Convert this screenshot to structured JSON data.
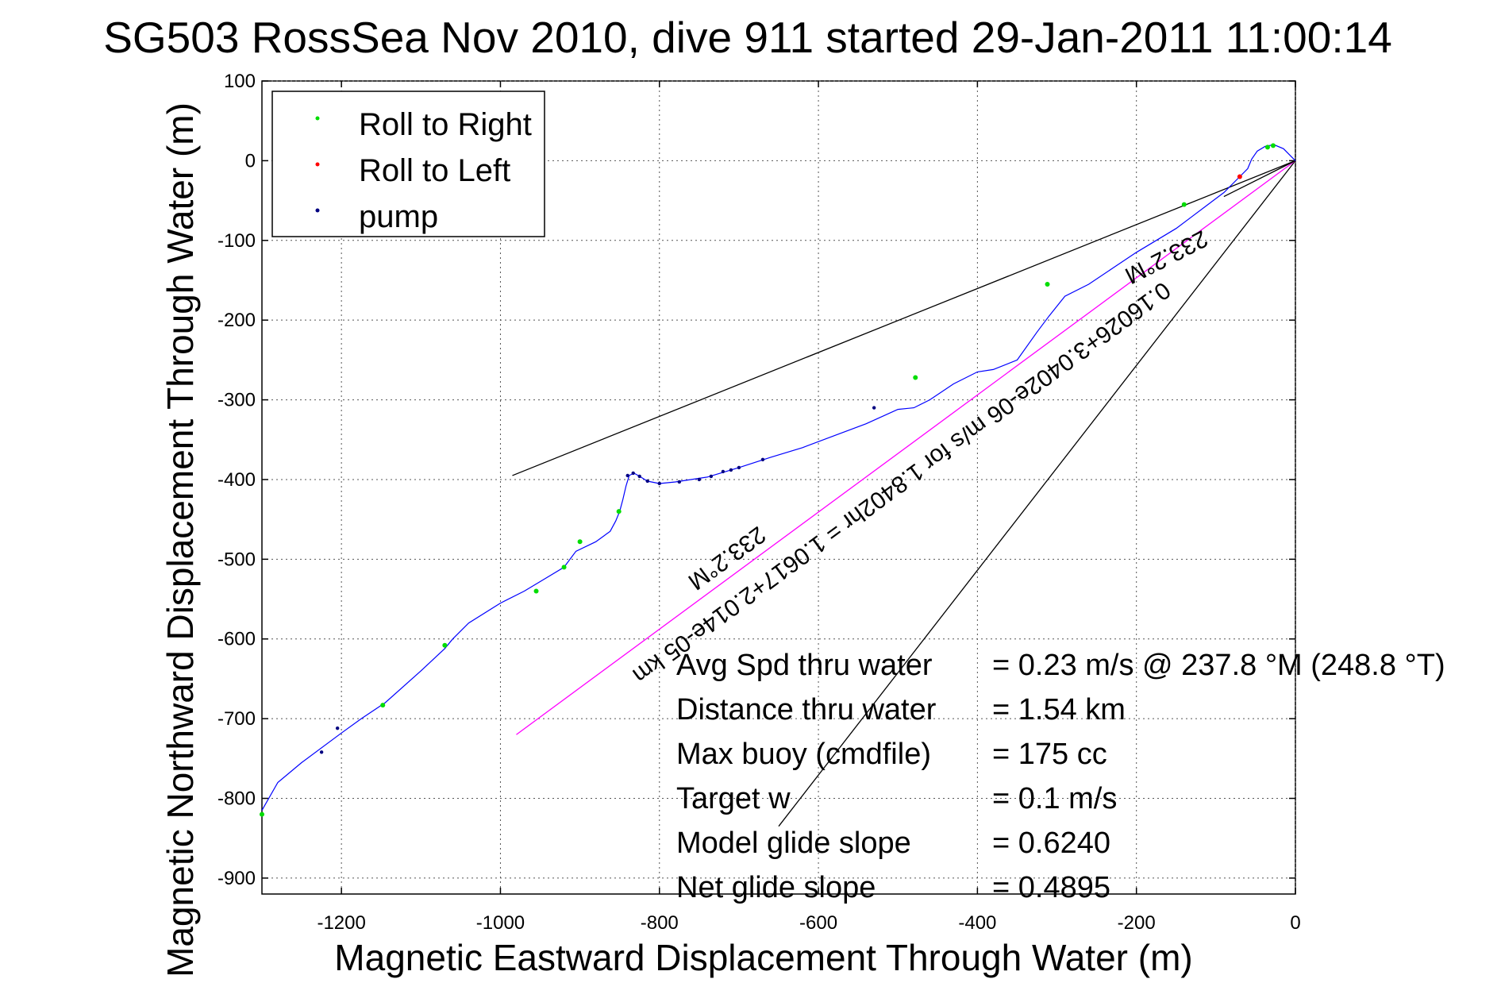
{
  "chart_data": {
    "type": "scatter",
    "title": "SG503 RossSea Nov 2010, dive 911 started 29-Jan-2011 11:00:14",
    "xlabel": "Magnetic Eastward Displacement Through Water (m)",
    "ylabel": "Magnetic Northward Displacement Through Water (m)",
    "xlim": [
      -1300,
      0
    ],
    "ylim": [
      -920,
      100
    ],
    "grid": true,
    "xticks": [
      -1200,
      -1000,
      -800,
      -600,
      -400,
      -200,
      0
    ],
    "xtick_labels": [
      "-1200",
      "-1000",
      "-800",
      "-600",
      "-400",
      "-200",
      "0"
    ],
    "yticks": [
      100,
      0,
      -100,
      -200,
      -300,
      -400,
      -500,
      -600,
      -700,
      -800,
      -900
    ],
    "ytick_labels": [
      "100",
      "0",
      "-100",
      "-200",
      "-300",
      "-400",
      "-500",
      "-600",
      "-700",
      "-800",
      "-900"
    ],
    "legend_position": "top-left",
    "legend": [
      {
        "label": "Roll to Right",
        "color": "#00dd00"
      },
      {
        "label": "Roll to Left",
        "color": "#ff0000"
      },
      {
        "label": "pump",
        "color": "#000080"
      }
    ],
    "track": {
      "color": "#0000ff",
      "x": [
        0,
        -5,
        -15,
        -27,
        -38,
        -48,
        -55,
        -60,
        -75,
        -90,
        -110,
        -130,
        -150,
        -175,
        -200,
        -230,
        -260,
        -290,
        -310,
        -325,
        -350,
        -380,
        -400,
        -430,
        -460,
        -480,
        -500,
        -540,
        -580,
        -620,
        -660,
        -700,
        -740,
        -780,
        -800,
        -815,
        -825,
        -832,
        -838,
        -842,
        -846,
        -850,
        -855,
        -862,
        -880,
        -905,
        -920,
        -945,
        -970,
        -1000,
        -1040,
        -1060,
        -1070,
        -1100,
        -1145,
        -1175,
        -1200,
        -1250,
        -1280,
        -1300
      ],
      "y": [
        0,
        5,
        15,
        20,
        18,
        12,
        2,
        -10,
        -25,
        -40,
        -55,
        -70,
        -85,
        -100,
        -115,
        -135,
        -155,
        -170,
        -195,
        -215,
        -250,
        -262,
        -265,
        -280,
        -300,
        -310,
        -312,
        -330,
        -345,
        -360,
        -372,
        -385,
        -397,
        -403,
        -405,
        -402,
        -396,
        -392,
        -395,
        -408,
        -425,
        -440,
        -452,
        -465,
        -478,
        -490,
        -510,
        -525,
        -540,
        -555,
        -580,
        -600,
        -612,
        -640,
        -680,
        -700,
        -718,
        -755,
        -780,
        -815
      ]
    },
    "roll_right_points": {
      "x": [
        -28,
        -35,
        -140,
        -312,
        -478,
        -851,
        -900,
        -920,
        -955,
        -1070,
        -1148,
        -1300
      ],
      "y": [
        19,
        17,
        -55,
        -155,
        -272,
        -440,
        -478,
        -510,
        -540,
        -608,
        -683,
        -820
      ]
    },
    "roll_left_points": {
      "x": [
        -70
      ],
      "y": [
        -20
      ]
    },
    "pump_points": {
      "x": [
        -670,
        -700,
        -710,
        -720,
        -735,
        -750,
        -775,
        -800,
        -815,
        -825,
        -833,
        -840,
        -530,
        -1205,
        -1225
      ],
      "y": [
        -375,
        -385,
        -388,
        -390,
        -396,
        -400,
        -403,
        -405,
        -402,
        -396,
        -392,
        -395,
        -310,
        -712,
        -742
      ]
    },
    "lines": [
      {
        "name": "upper-bound",
        "color": "#000000",
        "x": [
          0,
          -985
        ],
        "y": [
          0,
          -395
        ]
      },
      {
        "name": "lower-bound",
        "color": "#000000",
        "x": [
          0,
          -650
        ],
        "y": [
          0,
          -835
        ]
      },
      {
        "name": "current-vector",
        "color": "#ff00ff",
        "x": [
          0,
          -980
        ],
        "y": [
          0,
          -720
        ]
      },
      {
        "name": "heading-line",
        "color": "#000000",
        "x": [
          0,
          -90
        ],
        "y": [
          0,
          -45
        ]
      }
    ],
    "annotations": {
      "current_text": "0.16026+3.0402e-06 m/s for 1.8402hr = 1.0617+2.014e-05 km",
      "heading_near": "233.2°M",
      "heading_far": "233.2°M"
    },
    "stats": [
      {
        "label": "Avg Spd thru water",
        "value": "=  0.23 m/s @ 237.8 °M (248.8 °T)"
      },
      {
        "label": "Distance thru water",
        "value": "=  1.54 km"
      },
      {
        "label": "Max buoy (cmdfile)",
        "value": "= 175 cc"
      },
      {
        "label": "Target w",
        "value": "= 0.1 m/s"
      },
      {
        "label": "Model glide slope",
        "value": "= 0.6240"
      },
      {
        "label": "Net glide slope",
        "value": "= 0.4895"
      }
    ]
  }
}
